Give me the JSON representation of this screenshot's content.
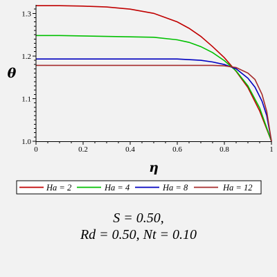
{
  "chart_data": {
    "type": "line",
    "xlabel": "η",
    "ylabel": "θ",
    "xlim": [
      0,
      1
    ],
    "ylim": [
      1.0,
      1.32
    ],
    "xticks": [
      0,
      0.2,
      0.4,
      0.6,
      0.8,
      1
    ],
    "xtick_labels": [
      "0",
      "0.2",
      "0.4",
      "0.6",
      "0.8",
      "1"
    ],
    "yticks": [
      1.0,
      1.1,
      1.2,
      1.3
    ],
    "ytick_labels": [
      "1.0",
      "1.1",
      "1.2",
      "1.3"
    ],
    "grid": false,
    "legend_position": "bottom",
    "series": [
      {
        "name": "Ha = 2",
        "color": "#c00000",
        "x": [
          0,
          0.1,
          0.2,
          0.3,
          0.4,
          0.5,
          0.6,
          0.65,
          0.7,
          0.75,
          0.8,
          0.85,
          0.9,
          0.95,
          1.0
        ],
        "y": [
          1.318,
          1.318,
          1.317,
          1.315,
          1.31,
          1.3,
          1.28,
          1.265,
          1.246,
          1.222,
          1.196,
          1.164,
          1.126,
          1.071,
          1.0
        ]
      },
      {
        "name": "Ha = 4",
        "color": "#00c000",
        "x": [
          0,
          0.1,
          0.2,
          0.3,
          0.4,
          0.5,
          0.6,
          0.65,
          0.7,
          0.75,
          0.8,
          0.85,
          0.9,
          0.95,
          1.0
        ],
        "y": [
          1.248,
          1.248,
          1.247,
          1.246,
          1.245,
          1.244,
          1.238,
          1.232,
          1.222,
          1.208,
          1.189,
          1.165,
          1.13,
          1.078,
          1.0
        ]
      },
      {
        "name": "Ha = 8",
        "color": "#0000c0",
        "x": [
          0,
          0.2,
          0.4,
          0.5,
          0.6,
          0.7,
          0.75,
          0.8,
          0.85,
          0.9,
          0.93,
          0.96,
          0.98,
          1.0
        ],
        "y": [
          1.193,
          1.193,
          1.193,
          1.193,
          1.193,
          1.19,
          1.186,
          1.18,
          1.17,
          1.148,
          1.127,
          1.094,
          1.06,
          1.0
        ]
      },
      {
        "name": "Ha = 12",
        "color": "#a52a2a",
        "x": [
          0,
          0.2,
          0.4,
          0.6,
          0.7,
          0.75,
          0.8,
          0.85,
          0.9,
          0.93,
          0.96,
          0.98,
          1.0
        ],
        "y": [
          1.178,
          1.178,
          1.178,
          1.178,
          1.178,
          1.178,
          1.177,
          1.173,
          1.16,
          1.145,
          1.11,
          1.07,
          1.0
        ]
      }
    ]
  },
  "caption": {
    "line1": "S = 0.50,",
    "line2": "Rd = 0.50, Nt = 0.10"
  }
}
